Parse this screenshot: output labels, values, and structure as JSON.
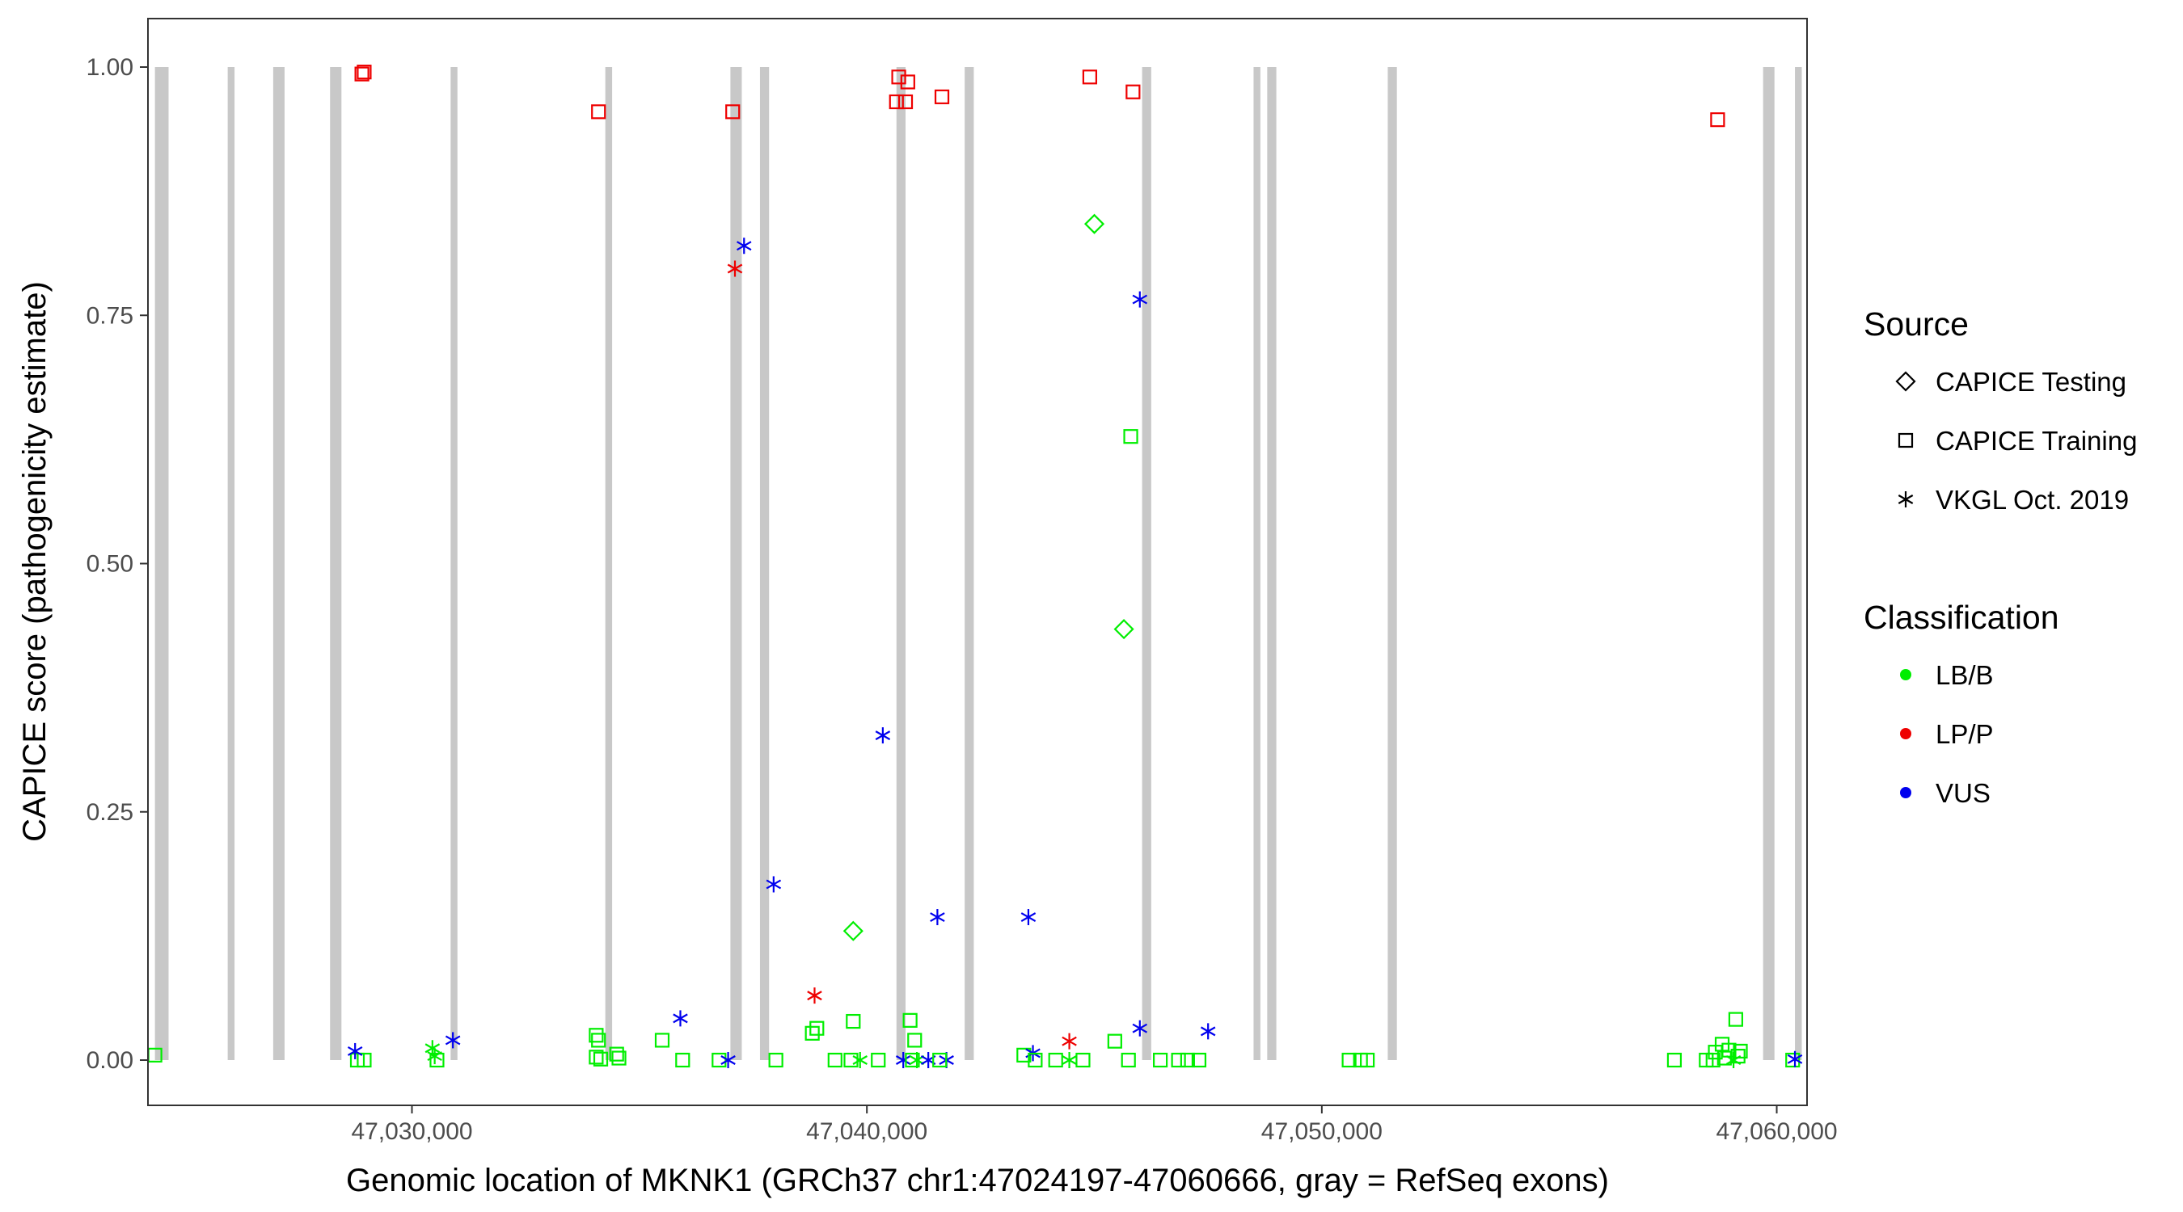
{
  "chart_data": {
    "type": "scatter",
    "title": "",
    "xlabel": "Genomic location of MKNK1 (GRCh37 chr1:47024197-47060666, gray = RefSeq exons)",
    "ylabel": "CAPICE score (pathogenicity estimate)",
    "xlim": [
      47024197,
      47060666
    ],
    "ylim": [
      0,
      1
    ],
    "x_ticks": [
      47030000,
      47040000,
      47050000,
      47060000
    ],
    "x_tick_labels": [
      "47,030,000",
      "47,040,000",
      "47,050,000",
      "47,060,000"
    ],
    "y_ticks": [
      0,
      0.25,
      0.5,
      0.75,
      1
    ],
    "y_tick_labels": [
      "0.00",
      "0.25",
      "0.50",
      "0.75",
      "1.00"
    ],
    "grid": false,
    "exons": [
      [
        47024350,
        47024650
      ],
      [
        47025950,
        47026100
      ],
      [
        47026950,
        47027200
      ],
      [
        47028200,
        47028450
      ],
      [
        47030850,
        47031000
      ],
      [
        47034250,
        47034400
      ],
      [
        47037000,
        47037250
      ],
      [
        47037650,
        47037850
      ],
      [
        47040650,
        47040850
      ],
      [
        47042150,
        47042350
      ],
      [
        47046050,
        47046250
      ],
      [
        47048500,
        47048650
      ],
      [
        47048800,
        47049000
      ],
      [
        47051450,
        47051650
      ],
      [
        47059700,
        47059950
      ],
      [
        47060400,
        47060550
      ]
    ],
    "legend": {
      "placement": "right",
      "source_title": "Source",
      "source_items": [
        {
          "label": "CAPICE Testing",
          "shape": "diamond"
        },
        {
          "label": "CAPICE Training",
          "shape": "square"
        },
        {
          "label": "VKGL Oct. 2019",
          "shape": "asterisk"
        }
      ],
      "classification_title": "Classification",
      "classification_items": [
        {
          "label": "LB/B",
          "color": "#00ee00"
        },
        {
          "label": "LP/P",
          "color": "#ee0000"
        },
        {
          "label": "VUS",
          "color": "#0000ee"
        }
      ]
    },
    "points": [
      {
        "x": 47024350,
        "y": 0.005,
        "source": "square",
        "cls": "LB/B"
      },
      {
        "x": 47028900,
        "y": 0.993,
        "source": "square",
        "cls": "LP/P"
      },
      {
        "x": 47028950,
        "y": 0.995,
        "source": "square",
        "cls": "LP/P"
      },
      {
        "x": 47028800,
        "y": 0.0,
        "source": "square",
        "cls": "LB/B"
      },
      {
        "x": 47028950,
        "y": 0.0,
        "source": "square",
        "cls": "LB/B"
      },
      {
        "x": 47028750,
        "y": 0.009,
        "source": "asterisk",
        "cls": "VUS"
      },
      {
        "x": 47030450,
        "y": 0.012,
        "source": "asterisk",
        "cls": "LB/B"
      },
      {
        "x": 47030500,
        "y": 0.004,
        "source": "asterisk",
        "cls": "LB/B"
      },
      {
        "x": 47030550,
        "y": 0.0,
        "source": "square",
        "cls": "LB/B"
      },
      {
        "x": 47030900,
        "y": 0.02,
        "source": "asterisk",
        "cls": "VUS"
      },
      {
        "x": 47034100,
        "y": 0.955,
        "source": "square",
        "cls": "LP/P"
      },
      {
        "x": 47034050,
        "y": 0.025,
        "source": "square",
        "cls": "LB/B"
      },
      {
        "x": 47034100,
        "y": 0.02,
        "source": "square",
        "cls": "LB/B"
      },
      {
        "x": 47034050,
        "y": 0.003,
        "source": "square",
        "cls": "LB/B"
      },
      {
        "x": 47034150,
        "y": 0.001,
        "source": "square",
        "cls": "LB/B"
      },
      {
        "x": 47034500,
        "y": 0.006,
        "source": "square",
        "cls": "LB/B"
      },
      {
        "x": 47034550,
        "y": 0.002,
        "source": "square",
        "cls": "LB/B"
      },
      {
        "x": 47035500,
        "y": 0.02,
        "source": "square",
        "cls": "LB/B"
      },
      {
        "x": 47035950,
        "y": 0.0,
        "source": "square",
        "cls": "LB/B"
      },
      {
        "x": 47035900,
        "y": 0.042,
        "source": "asterisk",
        "cls": "VUS"
      },
      {
        "x": 47036750,
        "y": 0.0,
        "source": "square",
        "cls": "LB/B"
      },
      {
        "x": 47036950,
        "y": 0.0,
        "source": "asterisk",
        "cls": "VUS"
      },
      {
        "x": 47037050,
        "y": 0.955,
        "source": "square",
        "cls": "LP/P"
      },
      {
        "x": 47037100,
        "y": 0.797,
        "source": "asterisk",
        "cls": "LP/P"
      },
      {
        "x": 47037300,
        "y": 0.82,
        "source": "asterisk",
        "cls": "VUS"
      },
      {
        "x": 47038000,
        "y": 0.0,
        "source": "square",
        "cls": "LB/B"
      },
      {
        "x": 47037950,
        "y": 0.177,
        "source": "asterisk",
        "cls": "VUS"
      },
      {
        "x": 47038850,
        "y": 0.065,
        "source": "asterisk",
        "cls": "LP/P"
      },
      {
        "x": 47038800,
        "y": 0.027,
        "source": "square",
        "cls": "LB/B"
      },
      {
        "x": 47038900,
        "y": 0.032,
        "source": "square",
        "cls": "LB/B"
      },
      {
        "x": 47039300,
        "y": 0.0,
        "source": "square",
        "cls": "LB/B"
      },
      {
        "x": 47039700,
        "y": 0.13,
        "source": "diamond",
        "cls": "LB/B"
      },
      {
        "x": 47039700,
        "y": 0.039,
        "source": "square",
        "cls": "LB/B"
      },
      {
        "x": 47039650,
        "y": 0.0,
        "source": "square",
        "cls": "LB/B"
      },
      {
        "x": 47039850,
        "y": 0.0,
        "source": "asterisk",
        "cls": "LB/B"
      },
      {
        "x": 47040250,
        "y": 0.0,
        "source": "square",
        "cls": "LB/B"
      },
      {
        "x": 47040350,
        "y": 0.327,
        "source": "asterisk",
        "cls": "VUS"
      },
      {
        "x": 47040700,
        "y": 0.99,
        "source": "square",
        "cls": "LP/P"
      },
      {
        "x": 47040900,
        "y": 0.985,
        "source": "square",
        "cls": "LP/P"
      },
      {
        "x": 47040650,
        "y": 0.965,
        "source": "square",
        "cls": "LP/P"
      },
      {
        "x": 47040850,
        "y": 0.965,
        "source": "square",
        "cls": "LP/P"
      },
      {
        "x": 47040800,
        "y": 0.0,
        "source": "asterisk",
        "cls": "VUS"
      },
      {
        "x": 47040950,
        "y": 0.04,
        "source": "square",
        "cls": "LB/B"
      },
      {
        "x": 47041050,
        "y": 0.02,
        "source": "square",
        "cls": "LB/B"
      },
      {
        "x": 47041000,
        "y": 0.0,
        "source": "square",
        "cls": "LB/B"
      },
      {
        "x": 47041100,
        "y": 0.0,
        "source": "asterisk",
        "cls": "LB/B"
      },
      {
        "x": 47041350,
        "y": 0.0,
        "source": "asterisk",
        "cls": "VUS"
      },
      {
        "x": 47041550,
        "y": 0.144,
        "source": "asterisk",
        "cls": "VUS"
      },
      {
        "x": 47041650,
        "y": 0.97,
        "source": "square",
        "cls": "LP/P"
      },
      {
        "x": 47041750,
        "y": 0.0,
        "source": "asterisk",
        "cls": "VUS"
      },
      {
        "x": 47041600,
        "y": 0.0,
        "source": "square",
        "cls": "LB/B"
      },
      {
        "x": 47043450,
        "y": 0.005,
        "source": "square",
        "cls": "LB/B"
      },
      {
        "x": 47043550,
        "y": 0.144,
        "source": "asterisk",
        "cls": "VUS"
      },
      {
        "x": 47043650,
        "y": 0.007,
        "source": "asterisk",
        "cls": "VUS"
      },
      {
        "x": 47043700,
        "y": 0.0,
        "source": "square",
        "cls": "LB/B"
      },
      {
        "x": 47044150,
        "y": 0.0,
        "source": "square",
        "cls": "LB/B"
      },
      {
        "x": 47044450,
        "y": 0.019,
        "source": "asterisk",
        "cls": "LP/P"
      },
      {
        "x": 47044450,
        "y": 0.0,
        "source": "asterisk",
        "cls": "LB/B"
      },
      {
        "x": 47044750,
        "y": 0.0,
        "source": "square",
        "cls": "LB/B"
      },
      {
        "x": 47044900,
        "y": 0.99,
        "source": "square",
        "cls": "LP/P"
      },
      {
        "x": 47045000,
        "y": 0.842,
        "source": "diamond",
        "cls": "LB/B"
      },
      {
        "x": 47045450,
        "y": 0.019,
        "source": "square",
        "cls": "LB/B"
      },
      {
        "x": 47045650,
        "y": 0.434,
        "source": "diamond",
        "cls": "LB/B"
      },
      {
        "x": 47045850,
        "y": 0.975,
        "source": "square",
        "cls": "LP/P"
      },
      {
        "x": 47045800,
        "y": 0.628,
        "source": "square",
        "cls": "LB/B"
      },
      {
        "x": 47045750,
        "y": 0.0,
        "source": "square",
        "cls": "LB/B"
      },
      {
        "x": 47046000,
        "y": 0.766,
        "source": "asterisk",
        "cls": "VUS"
      },
      {
        "x": 47046000,
        "y": 0.032,
        "source": "asterisk",
        "cls": "VUS"
      },
      {
        "x": 47046450,
        "y": 0.0,
        "source": "square",
        "cls": "LB/B"
      },
      {
        "x": 47046850,
        "y": 0.0,
        "source": "square",
        "cls": "LB/B"
      },
      {
        "x": 47047050,
        "y": 0.0,
        "source": "square",
        "cls": "LB/B"
      },
      {
        "x": 47047300,
        "y": 0.0,
        "source": "square",
        "cls": "LB/B"
      },
      {
        "x": 47047500,
        "y": 0.029,
        "source": "asterisk",
        "cls": "VUS"
      },
      {
        "x": 47050600,
        "y": 0.0,
        "source": "square",
        "cls": "LB/B"
      },
      {
        "x": 47050850,
        "y": 0.0,
        "source": "square",
        "cls": "LB/B"
      },
      {
        "x": 47051000,
        "y": 0.0,
        "source": "square",
        "cls": "LB/B"
      },
      {
        "x": 47057750,
        "y": 0.0,
        "source": "square",
        "cls": "LB/B"
      },
      {
        "x": 47058450,
        "y": 0.0,
        "source": "square",
        "cls": "LB/B"
      },
      {
        "x": 47058600,
        "y": 0.0,
        "source": "square",
        "cls": "LB/B"
      },
      {
        "x": 47058700,
        "y": 0.947,
        "source": "square",
        "cls": "LP/P"
      },
      {
        "x": 47058650,
        "y": 0.008,
        "source": "square",
        "cls": "LB/B"
      },
      {
        "x": 47058800,
        "y": 0.016,
        "source": "square",
        "cls": "LB/B"
      },
      {
        "x": 47058850,
        "y": 0.002,
        "source": "square",
        "cls": "LB/B"
      },
      {
        "x": 47058950,
        "y": 0.01,
        "source": "square",
        "cls": "LB/B"
      },
      {
        "x": 47059050,
        "y": 0.0,
        "source": "asterisk",
        "cls": "LB/B"
      },
      {
        "x": 47059100,
        "y": 0.041,
        "source": "square",
        "cls": "LB/B"
      },
      {
        "x": 47059150,
        "y": 0.004,
        "source": "square",
        "cls": "LB/B"
      },
      {
        "x": 47059200,
        "y": 0.009,
        "source": "square",
        "cls": "LB/B"
      },
      {
        "x": 47060350,
        "y": 0.0,
        "source": "square",
        "cls": "LB/B"
      },
      {
        "x": 47060400,
        "y": 0.001,
        "source": "asterisk",
        "cls": "VUS"
      }
    ]
  }
}
